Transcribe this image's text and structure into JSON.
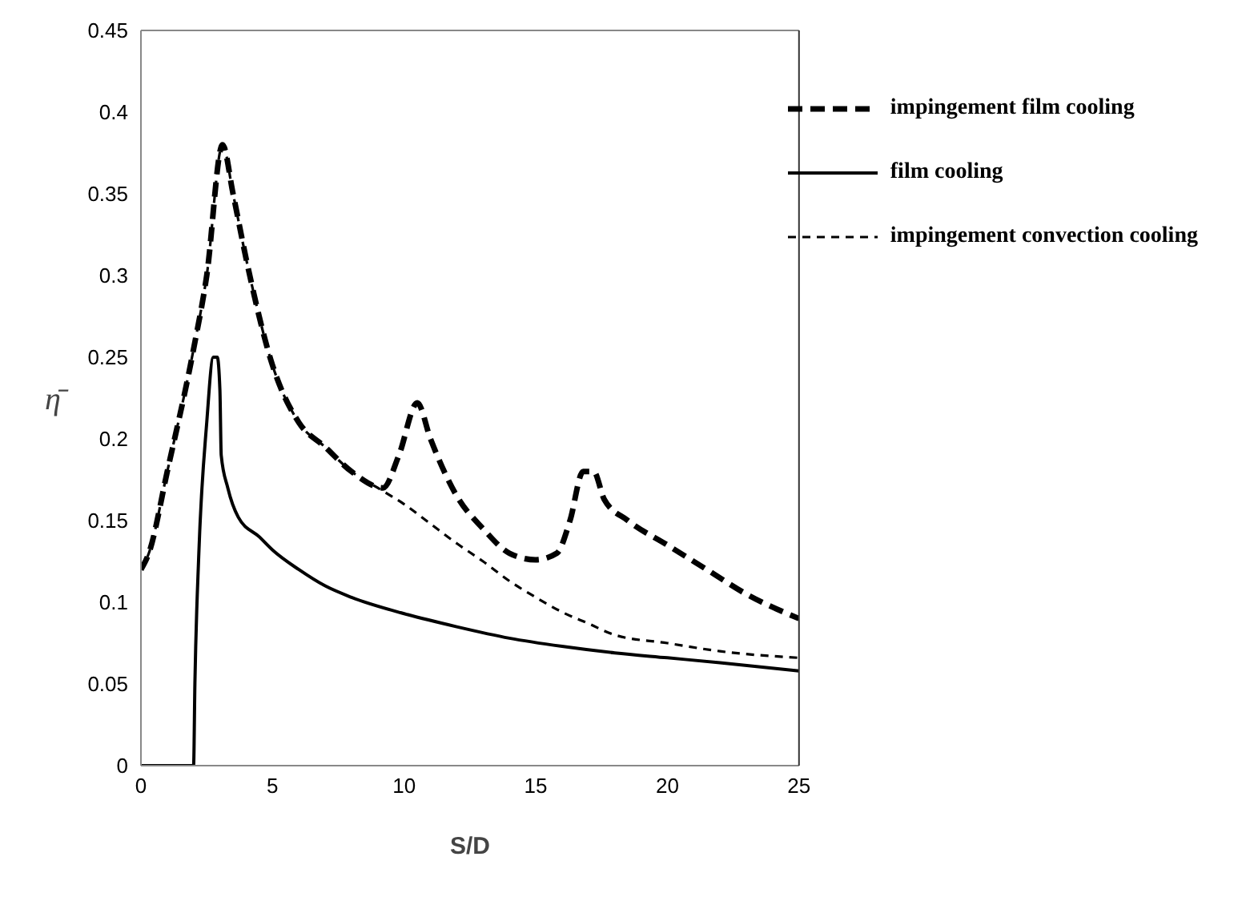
{
  "chart_data": {
    "type": "line",
    "xlabel": "S/D",
    "ylabel": "η̄",
    "xlim": [
      0,
      25
    ],
    "xticks": [
      0,
      5,
      10,
      15,
      20,
      25
    ],
    "ylim": [
      0,
      0.45
    ],
    "yticks": [
      0,
      0.05,
      0.1,
      0.15,
      0.2,
      0.25,
      0.3,
      0.35,
      0.4,
      0.45
    ],
    "grid": false,
    "legend": "top right",
    "marker": "none",
    "series": [
      {
        "name": "impingement film cooling",
        "color": "#000000",
        "line_style": "dashed",
        "x": [
          0,
          0.3,
          1,
          2,
          2.5,
          3.1,
          3.5,
          4,
          5,
          6,
          7,
          8,
          9.2,
          9.8,
          10.5,
          11,
          12,
          13,
          14,
          15,
          15.8,
          16.3,
          16.8,
          17.2,
          17.6,
          18.5,
          20,
          21.5,
          23,
          25
        ],
        "values": [
          0.12,
          0.13,
          0.18,
          0.255,
          0.3,
          0.38,
          0.35,
          0.31,
          0.245,
          0.21,
          0.195,
          0.18,
          0.17,
          0.19,
          0.222,
          0.2,
          0.165,
          0.145,
          0.13,
          0.126,
          0.13,
          0.15,
          0.18,
          0.18,
          0.163,
          0.15,
          0.135,
          0.12,
          0.105,
          0.09
        ]
      },
      {
        "name": "film cooling",
        "color": "#000000",
        "line_style": "solid",
        "x": [
          0,
          2,
          2.05,
          2.2,
          2.5,
          2.75,
          2.9,
          3,
          3.05,
          3.3,
          3.7,
          4.5,
          5,
          6,
          7,
          8,
          10,
          12,
          14,
          16,
          18,
          20,
          22,
          25
        ],
        "values": [
          0,
          0,
          0.05,
          0.13,
          0.21,
          0.25,
          0.25,
          0.23,
          0.19,
          0.17,
          0.152,
          0.14,
          0.132,
          0.12,
          0.11,
          0.103,
          0.093,
          0.085,
          0.078,
          0.073,
          0.069,
          0.066,
          0.063,
          0.058
        ]
      },
      {
        "name": "impingement convection cooling",
        "color": "#000000",
        "line_style": "dashed",
        "x": [
          0,
          0.3,
          1,
          2,
          2.5,
          3.1,
          3.5,
          4,
          5,
          6,
          7,
          8,
          9,
          10,
          11,
          12,
          13,
          14,
          15,
          16,
          17,
          18,
          20,
          22,
          25
        ],
        "values": [
          0.12,
          0.13,
          0.18,
          0.255,
          0.3,
          0.38,
          0.35,
          0.31,
          0.245,
          0.21,
          0.195,
          0.18,
          0.17,
          0.16,
          0.148,
          0.136,
          0.125,
          0.113,
          0.103,
          0.094,
          0.087,
          0.08,
          0.075,
          0.07,
          0.066
        ]
      }
    ]
  }
}
